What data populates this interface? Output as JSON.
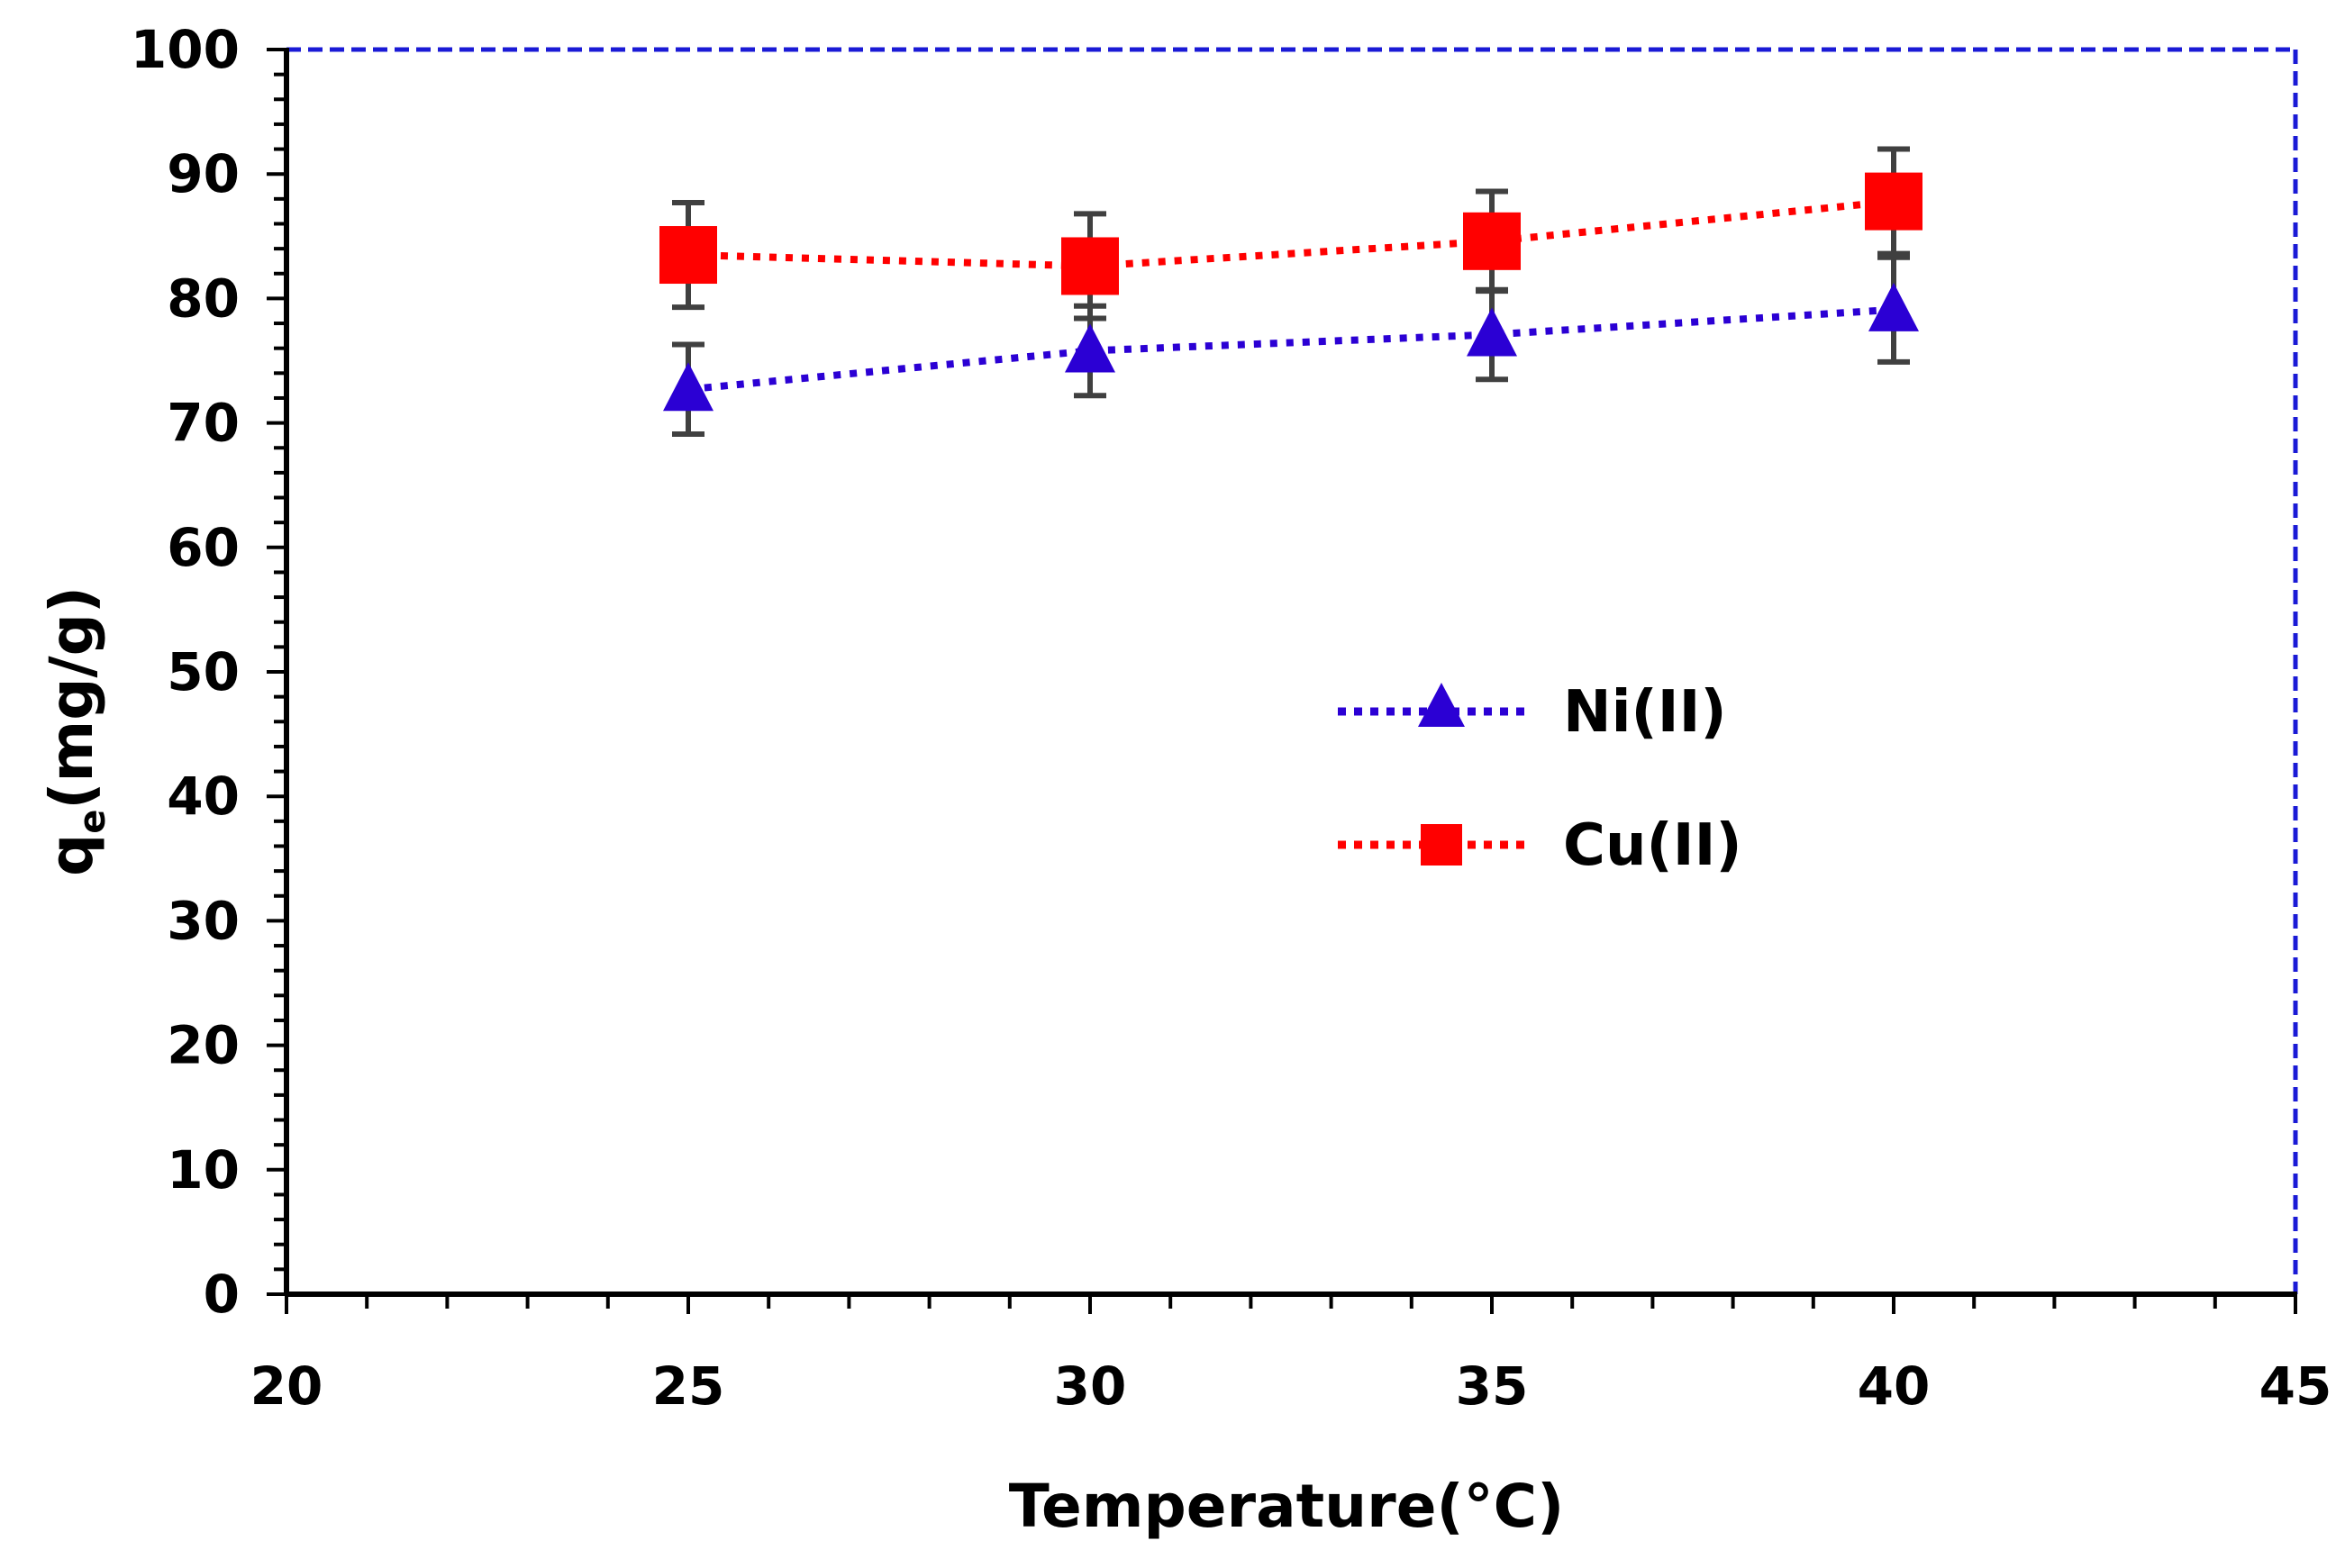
{
  "chart_data": {
    "type": "scatter",
    "title": "",
    "xlabel": "Temperature(°C)",
    "ylabel_main": "q",
    "ylabel_sub": "e",
    "ylabel_rest": "(mg/g)",
    "xlim": [
      20,
      45
    ],
    "ylim": [
      0,
      100
    ],
    "x_ticks": [
      20,
      25,
      30,
      35,
      40,
      45
    ],
    "y_ticks": [
      0,
      10,
      20,
      30,
      40,
      50,
      60,
      70,
      80,
      90,
      100
    ],
    "x_minor_step": 1,
    "y_minor_step": 2,
    "legend_position": "center-right",
    "series": [
      {
        "name": "Ni(II)",
        "marker": "triangle",
        "color": "#2b00d4",
        "line_style": "dotted",
        "x": [
          25,
          30,
          35,
          40
        ],
        "y": [
          72.7,
          75.8,
          77.1,
          79.1
        ],
        "err": [
          3.6,
          3.6,
          3.6,
          4.2
        ]
      },
      {
        "name": "Cu(II)",
        "marker": "square",
        "color": "#ff0000",
        "line_style": "dotted",
        "x": [
          25,
          30,
          35,
          40
        ],
        "y": [
          83.5,
          82.6,
          84.6,
          87.8
        ],
        "err": [
          4.2,
          4.2,
          4.0,
          4.2
        ]
      }
    ],
    "frame_color": "#1a1ad6",
    "errorbar_color": "#404040"
  }
}
